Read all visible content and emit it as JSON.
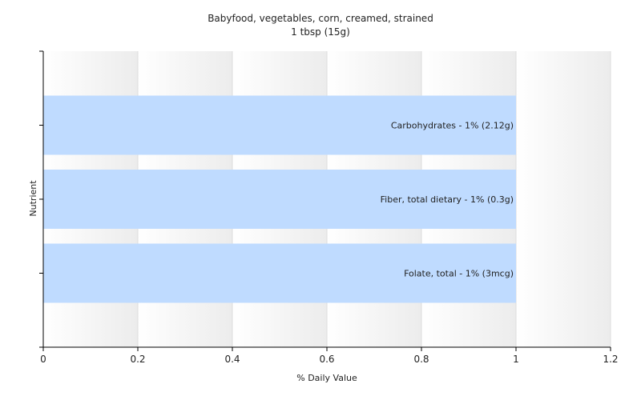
{
  "chart_data": {
    "type": "bar",
    "orientation": "horizontal",
    "title": "Babyfood, vegetables, corn, creamed, strained",
    "subtitle": "1 tbsp (15g)",
    "xlabel": "% Daily Value",
    "ylabel": "Nutrient",
    "xlim": [
      0,
      1.2
    ],
    "xticks": [
      "0",
      "0.2",
      "0.4",
      "0.6",
      "0.8",
      "1",
      "1.2"
    ],
    "grid": true,
    "legend": "none",
    "categories": [
      "Carbohydrates",
      "Fiber, total dietary",
      "Folate, total"
    ],
    "values": [
      1,
      1,
      1
    ],
    "bar_labels": [
      "Carbohydrates - 1% (2.12g)",
      "Fiber, total dietary - 1% (0.3g)",
      "Folate, total - 1% (3mcg)"
    ],
    "bar_color": "#bfdbff"
  }
}
